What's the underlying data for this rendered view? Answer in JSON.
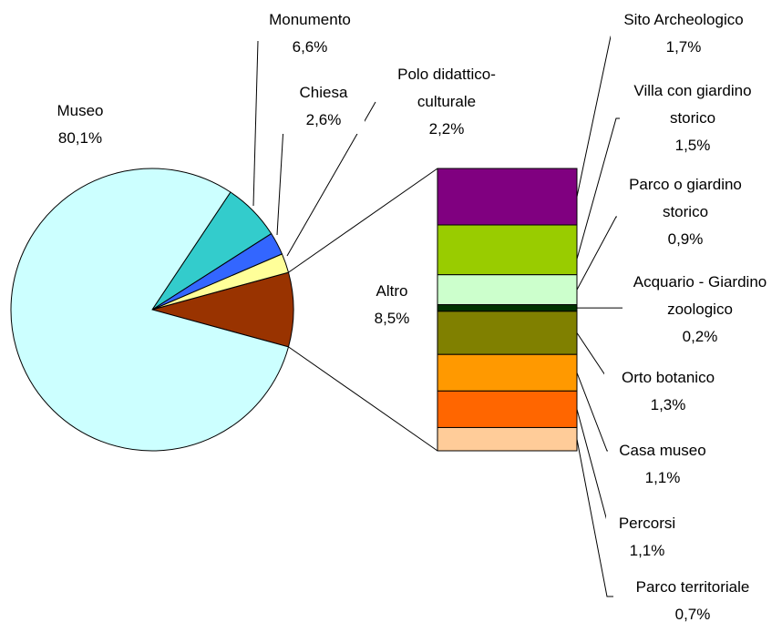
{
  "chart_data": {
    "type": "pie",
    "categories": [
      "Museo",
      "Monumento",
      "Chiesa",
      "Polo didattico-culturale",
      "Altro"
    ],
    "values": [
      80.1,
      6.6,
      2.6,
      2.2,
      8.5
    ],
    "value_labels": [
      "80,1%",
      "6,6%",
      "2,6%",
      "2,2%",
      "8,5%"
    ],
    "colors": [
      "#ccffff",
      "#33cccc",
      "#3366ff",
      "#ffff99",
      "#993300"
    ],
    "breakdown": {
      "categories": [
        "Sito Archeologico",
        "Villa con giardino storico",
        "Parco o giardino storico",
        "Acquario - Giardino zoologico",
        "Orto botanico",
        "Casa museo",
        "Percorsi",
        "Parco territoriale"
      ],
      "values": [
        1.7,
        1.5,
        0.9,
        0.2,
        1.3,
        1.1,
        1.1,
        0.7
      ],
      "value_labels": [
        "1,7%",
        "1,5%",
        "0,9%",
        "0,2%",
        "1,3%",
        "1,1%",
        "1,1%",
        "0,7%"
      ],
      "colors": [
        "#800080",
        "#99cc00",
        "#ccffcc",
        "#003300",
        "#808000",
        "#ff9900",
        "#ff6600",
        "#ffcc99"
      ]
    }
  }
}
